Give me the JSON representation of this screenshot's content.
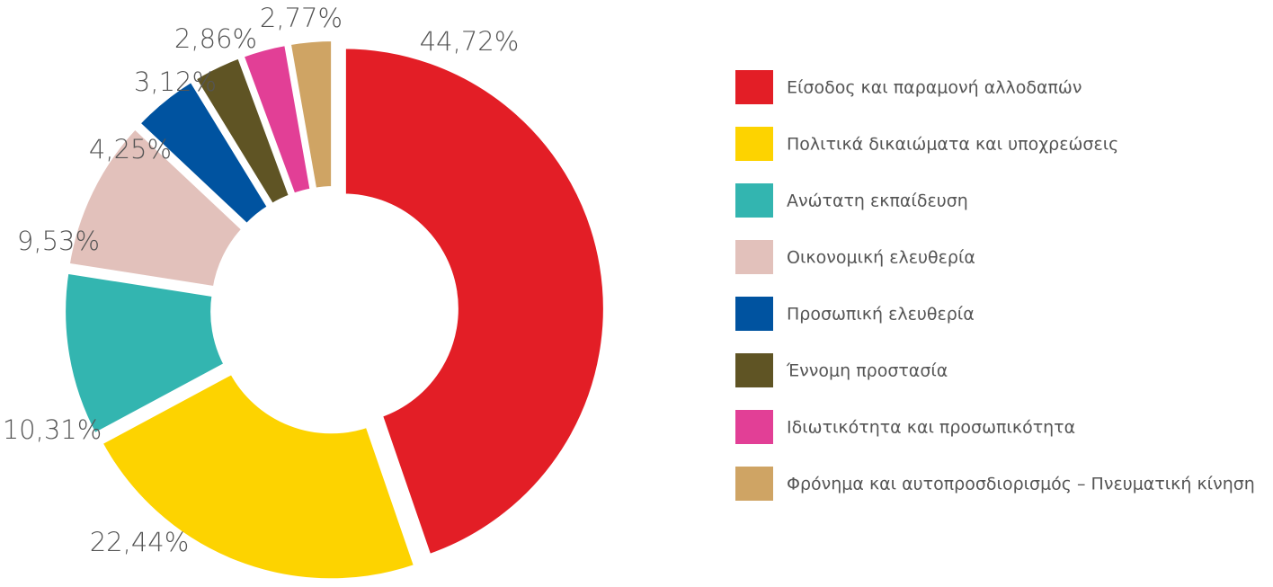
{
  "chart_data": {
    "type": "donut",
    "categories": [
      "Είσοδος και παραμονή αλλοδαπών",
      "Πολιτικά δικαιώματα και υποχρεώσεις",
      "Ανώτατη εκπαίδευση",
      "Οικονομική ελευθερία",
      "Προσωπική ελευθερία",
      "Έννομη προστασία",
      "Ιδιωτικότητα και προσωπικότητα",
      "Φρόνημα και αυτοπροσδιορισμός – Πνευματική κίνηση"
    ],
    "values": [
      44.72,
      22.44,
      10.31,
      9.53,
      4.25,
      3.12,
      2.86,
      2.77
    ],
    "value_labels": [
      "44,72%",
      "22,44%",
      "10,31%",
      "9,53%",
      "4,25%",
      "3,12%",
      "2,86%",
      "2,77%"
    ],
    "colors": [
      "#e31e26",
      "#fdd300",
      "#33b5b0",
      "#e2c1bb",
      "#0053a0",
      "#5f5424",
      "#e23f96",
      "#cfa464"
    ],
    "legend": "right"
  }
}
